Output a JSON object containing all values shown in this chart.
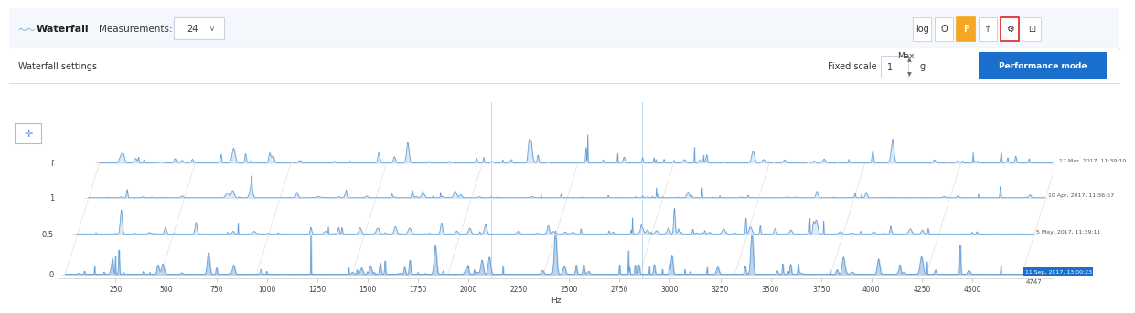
{
  "title_text": "Waterfall",
  "measurements_label": "Measurements:",
  "measurements_value": "24",
  "waterfall_settings_label": "Waterfall settings",
  "fixed_scale_label": "Fixed scale",
  "max_label": "Max",
  "max_value": "1",
  "g_label": "g",
  "performance_mode_label": "Performance mode",
  "x_label": "Hz",
  "x_ticks": [
    250,
    500,
    750,
    1000,
    1250,
    1500,
    1750,
    2000,
    2250,
    2500,
    2750,
    3000,
    3250,
    3500,
    3750,
    4000,
    4250,
    4500
  ],
  "x_max_label": "4747",
  "timestamps": [
    "17 Mar, 2017, 11:39:10",
    "10 Apr, 2017, 11:36:57",
    "5 May, 2017, 11:39:11",
    "11 Sep, 2017, 13:00:23"
  ],
  "bg_color": "#ffffff",
  "header_bg": "#f4f7fb",
  "header_border": "#d0d8e8",
  "chart_bg": "#ffffff",
  "line_color": "#5b9bd5",
  "fill_color": "#a8c8e8",
  "grid_color": "#e8e8e8",
  "diagonal_color": "#d8d8d8",
  "perf_button_bg": "#1a6fcc",
  "highlight_orange": "#f5a623",
  "highlight_red": "#e02020",
  "last_timestamp_bg": "#1a6fcc",
  "nav_btn_color": "#5b8fd5"
}
